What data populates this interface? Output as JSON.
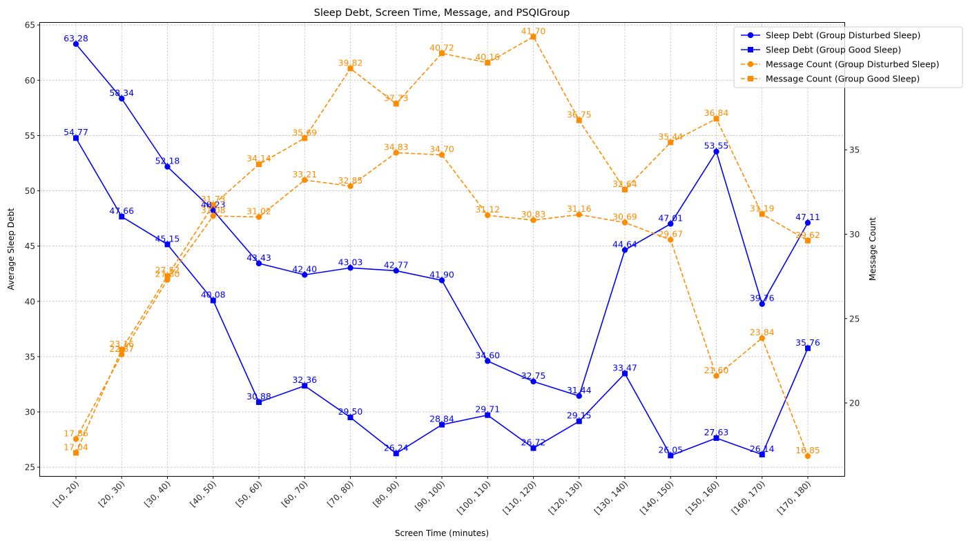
{
  "chart_data": {
    "type": "line",
    "title": "Sleep Debt, Screen Time, Message, and PSQIGroup",
    "xlabel": "Screen Time (minutes)",
    "ylabel_left": "Average Sleep Debt",
    "ylabel_right": "Message Count",
    "categories": [
      "[10, 20)",
      "[20, 30)",
      "[30, 40)",
      "[40, 50)",
      "[50, 60)",
      "[60, 70)",
      "[70, 80)",
      "[80, 90)",
      "[90, 100)",
      "[100, 110)",
      "[110, 120)",
      "[120, 130)",
      "[130, 140)",
      "[140, 150)",
      "[150, 160)",
      "[160, 170)",
      "[170, 180)"
    ],
    "ylim_left": [
      24.2,
      65.2
    ],
    "yticks_left": [
      25,
      30,
      35,
      40,
      45,
      50,
      55,
      60,
      65
    ],
    "ylim_right": [
      15.67,
      42.53
    ],
    "yticks_right": [
      20,
      25,
      30,
      35,
      40
    ],
    "grid": true,
    "legend_position": "top-right",
    "series": [
      {
        "name": "Sleep Debt (Group Disturbed Sleep)",
        "axis": "left",
        "color": "#0000ff",
        "marker": "circle",
        "linestyle": "solid",
        "values": [
          63.28,
          58.34,
          52.18,
          48.23,
          43.43,
          42.4,
          43.03,
          42.77,
          41.9,
          34.6,
          32.75,
          31.44,
          44.64,
          47.01,
          53.55,
          39.76,
          47.11
        ],
        "labels": [
          "63.28",
          "58.34",
          "52.18",
          "48.23",
          "43.43",
          "42.40",
          "43.03",
          "42.77",
          "41.90",
          "34.60",
          "32.75",
          "31.44",
          "44.64",
          "47.01",
          "53.55",
          "39.76",
          "47.11"
        ]
      },
      {
        "name": "Sleep Debt (Group Good Sleep)",
        "axis": "left",
        "color": "#0000ff",
        "marker": "square",
        "linestyle": "solid",
        "values": [
          54.77,
          47.66,
          45.15,
          40.08,
          30.88,
          32.36,
          29.5,
          26.24,
          28.84,
          29.71,
          26.72,
          29.15,
          33.47,
          26.05,
          27.63,
          26.14,
          35.76
        ],
        "labels": [
          "54.77",
          "47.66",
          "45.15",
          "40.08",
          "30.88",
          "32.36",
          "29.50",
          "26.24",
          "28.84",
          "29.71",
          "26.72",
          "29.15",
          "33.47",
          "26.05",
          "27.63",
          "26.14",
          "35.76"
        ]
      },
      {
        "name": "Message Count (Group Disturbed Sleep)",
        "axis": "right",
        "color": "#ff8c00",
        "marker": "circle",
        "linestyle": "dashed",
        "values": [
          17.86,
          22.87,
          27.3,
          31.08,
          31.02,
          33.21,
          32.85,
          34.83,
          34.7,
          31.12,
          30.83,
          31.16,
          30.69,
          29.67,
          21.6,
          23.84,
          16.85
        ],
        "labels": [
          "17.86",
          "22.87",
          "27.30",
          "31.08",
          "31.02",
          "33.21",
          "32.85",
          "34.83",
          "34.70",
          "31.12",
          "30.83",
          "31.16",
          "30.69",
          "29.67",
          "21.60",
          "23.84",
          "16.85"
        ]
      },
      {
        "name": "Message Count (Group Good Sleep)",
        "axis": "right",
        "color": "#ff8c00",
        "marker": "square",
        "linestyle": "dashed",
        "values": [
          17.04,
          23.16,
          27.52,
          31.73,
          34.14,
          35.69,
          39.82,
          37.73,
          40.72,
          40.16,
          41.7,
          36.75,
          32.64,
          35.44,
          36.84,
          31.19,
          29.62
        ],
        "labels": [
          "17.04",
          "23.16",
          "27.52",
          "31.73",
          "34.14",
          "35.69",
          "39.82",
          "37.73",
          "40.72",
          "40.16",
          "41.70",
          "36.75",
          "32.64",
          "35.44",
          "36.84",
          "31.19",
          "29.62"
        ]
      }
    ]
  }
}
